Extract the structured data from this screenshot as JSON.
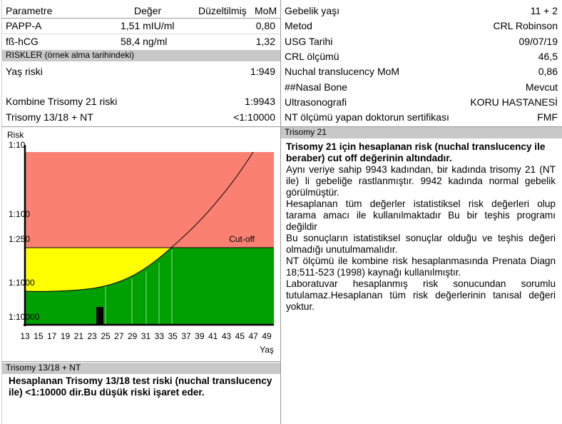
{
  "left_table": {
    "headers": [
      "Parametre",
      "Değer",
      "Düzeltilmiş",
      "MoM"
    ],
    "rows": [
      [
        "PAPP-A",
        "1,51 mIU/ml",
        "0,80"
      ],
      [
        "fß-hCG",
        "58,4 ng/ml",
        "1,32"
      ]
    ]
  },
  "risks": {
    "title": "RISKLER (örnek alma tarihindeki)",
    "rows": [
      [
        "Yaş riski",
        "1:949"
      ],
      [
        "Kombine Trisomy 21 riski",
        "1:9943"
      ],
      [
        "Trisomy 13/18 + NT",
        "<1:10000"
      ]
    ]
  },
  "chart": {
    "y_label": "Risk",
    "x_label": "Yaş",
    "cutoff_label": "Cut-off",
    "yticks": [
      "1:10",
      "1:100",
      "1:250",
      "1:1000",
      "1:10000"
    ],
    "xticks": [
      13,
      15,
      17,
      19,
      21,
      23,
      25,
      27,
      29,
      31,
      33,
      35,
      37,
      39,
      41,
      43,
      45,
      47,
      49
    ]
  },
  "t1318": {
    "title": "Trisomy 13/18 + NT",
    "text": "Hesaplanan Trisomy 13/18 test riski (nuchal translucency ile)  <1:10000 dir.Bu düşük riski işaret eder."
  },
  "info": {
    "rows": [
      [
        "Gebelik yaşı",
        "11 + 2"
      ],
      [
        "Metod",
        "CRL Robinson"
      ],
      [
        "USG Tarihi",
        "09/07/19"
      ],
      [
        "CRL ölçümü",
        "46,5"
      ],
      [
        "Nuchal translucency MoM",
        "0,86"
      ],
      [
        "##Nasal Bone",
        "Mevcut"
      ],
      [
        "Ultrasonografi",
        "KORU HASTANESİ"
      ],
      [
        "NT ölçümü yapan doktorun sertifikası",
        "FMF"
      ]
    ]
  },
  "t21": {
    "title": "Trisomy 21",
    "heading": "Trisomy 21 için hesaplanan risk (nuchal translucency ile beraber) cut off değerinin altındadır.",
    "paragraphs": [
      "Aynı veriye sahip 9943 kadından, bir kadında trisomy 21 (NT ile) li gebeliğe rastlanmıştır. 9942 kadında normal gebelik görülmüştür.",
      "Hesaplanan tüm değerler istatistiksel risk değerleri olup tarama amacı ile kullanılmaktadır Bu bir teşhis programı değildir",
      "Bu sonuçların istatistiksel sonuçlar olduğu ve teşhis değeri olmadığı unutulmamalıdır.",
      "NT ölçümü ile  kombine risk hesaplanmasında Prenata Diagn 18;511-523 (1998) kaynağı kullanılmıştır.",
      "Laboratuvar hesaplanmış risk sonucundan sorumlu tutulamaz.Hesaplanan tüm risk değerlerinin  tanısal değeri yoktur."
    ]
  }
}
